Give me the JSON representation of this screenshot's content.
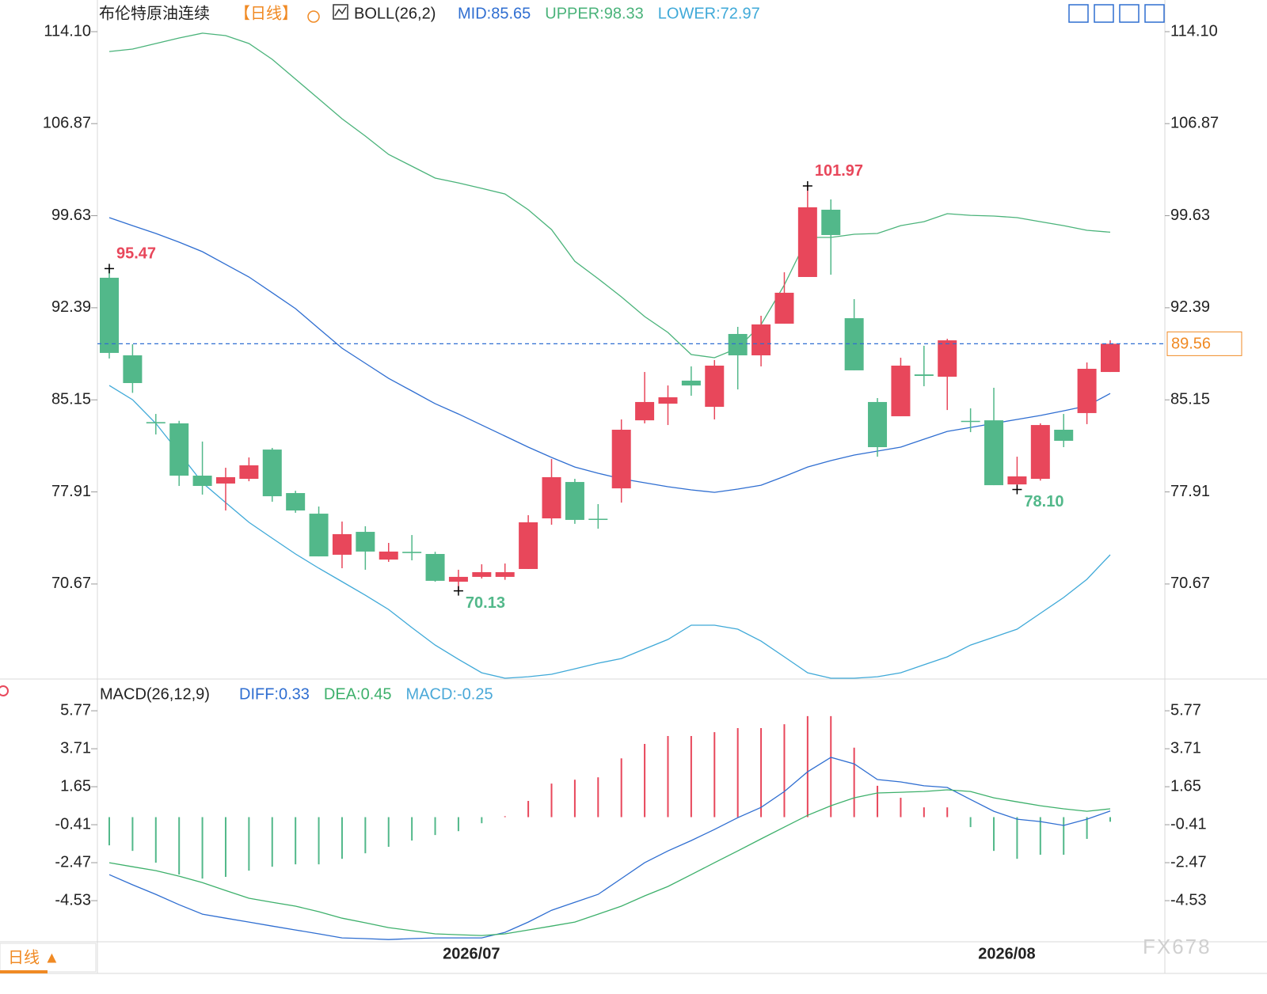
{
  "chart_data": [
    {
      "type": "candlestick",
      "title": "布伦特原油连续",
      "period": "【日线】",
      "indicator": "BOLL(26,2)",
      "up_color": "#e8475b",
      "down_color": "#52b88a",
      "open": [
        94.75,
        88.65,
        83.4,
        83.3,
        79.19,
        78.57,
        78.94,
        81.24,
        77.82,
        76.2,
        72.97,
        74.77,
        72.59,
        73.2,
        73.03,
        70.85,
        71.23,
        71.23,
        71.85,
        75.83,
        78.69,
        75.8,
        78.19,
        83.54,
        84.85,
        86.66,
        84.6,
        90.33,
        88.65,
        91.14,
        94.81,
        100.1,
        91.57,
        84.98,
        83.86,
        87.15,
        86.97,
        83.5,
        83.54,
        78.5,
        78.94,
        82.8,
        84.11,
        87.34
      ],
      "high": [
        95.47,
        89.52,
        84.04,
        83.5,
        81.87,
        79.81,
        80.62,
        81.37,
        78.0,
        76.76,
        75.58,
        75.21,
        73.9,
        74.52,
        73.2,
        71.79,
        72.22,
        72.28,
        76.08,
        80.5,
        78.94,
        76.95,
        83.61,
        87.34,
        86.28,
        87.78,
        88.28,
        90.89,
        91.76,
        95.18,
        101.97,
        100.91,
        93.07,
        85.29,
        88.46,
        89.4,
        89.95,
        84.48,
        86.1,
        80.68,
        83.3,
        84.04,
        88.09,
        89.83
      ],
      "low": [
        88.4,
        85.7,
        82.43,
        78.38,
        77.7,
        76.45,
        78.75,
        77.14,
        76.27,
        72.84,
        71.91,
        71.79,
        72.41,
        72.53,
        70.85,
        70.13,
        71.1,
        71.0,
        71.85,
        75.33,
        75.4,
        75.02,
        77.07,
        83.3,
        83.17,
        85.47,
        83.61,
        85.97,
        87.78,
        91.14,
        94.81,
        94.99,
        87.47,
        80.68,
        83.86,
        86.22,
        84.35,
        82.61,
        78.44,
        78.1,
        78.8,
        81.43,
        83.24,
        87.34
      ],
      "close": [
        88.84,
        86.47,
        83.3,
        79.19,
        78.38,
        79.07,
        80.0,
        77.57,
        76.45,
        72.84,
        74.59,
        73.22,
        73.22,
        73.1,
        70.92,
        71.23,
        71.6,
        71.6,
        75.52,
        79.07,
        75.71,
        75.75,
        82.8,
        84.98,
        85.35,
        86.28,
        87.84,
        88.65,
        91.08,
        93.57,
        100.29,
        98.11,
        87.47,
        81.43,
        87.84,
        87.03,
        89.83,
        83.45,
        78.44,
        79.13,
        83.17,
        81.93,
        87.59,
        89.56
      ],
      "series": [
        {
          "name": "MID:85.65",
          "color": "#2f6ed1",
          "values": [
            99.48,
            98.85,
            98.23,
            97.55,
            96.8,
            95.8,
            94.81,
            93.57,
            92.32,
            90.76,
            89.21,
            88.03,
            86.84,
            85.85,
            84.85,
            84.04,
            83.17,
            82.3,
            81.43,
            80.62,
            79.87,
            79.38,
            78.94,
            78.63,
            78.32,
            78.07,
            77.88,
            78.13,
            78.44,
            79.13,
            79.87,
            80.37,
            80.81,
            81.12,
            81.43,
            82.05,
            82.67,
            82.98,
            83.3,
            83.61,
            83.92,
            84.29,
            84.67,
            85.65
          ]
        },
        {
          "name": "UPPER:98.33",
          "color": "#4ab37a",
          "values": [
            112.54,
            112.73,
            113.17,
            113.6,
            113.98,
            113.79,
            113.17,
            111.92,
            110.37,
            108.81,
            107.25,
            105.89,
            104.45,
            103.52,
            102.59,
            102.21,
            101.78,
            101.34,
            100.1,
            98.54,
            96.05,
            94.68,
            93.25,
            91.7,
            90.45,
            88.71,
            88.46,
            89.21,
            91.07,
            94.19,
            97.92,
            97.92,
            98.17,
            98.23,
            98.85,
            99.16,
            99.79,
            99.66,
            99.6,
            99.48,
            99.16,
            98.85,
            98.48,
            98.33
          ]
        },
        {
          "name": "LOWER:72.97",
          "color": "#3fa9d8",
          "values": [
            86.28,
            85.16,
            83.3,
            80.99,
            78.63,
            77.07,
            75.52,
            74.27,
            73.03,
            71.91,
            70.85,
            69.79,
            68.67,
            67.24,
            65.87,
            64.75,
            63.69,
            63.26,
            63.38,
            63.57,
            64.0,
            64.44,
            64.81,
            65.56,
            66.31,
            67.43,
            67.43,
            67.12,
            66.18,
            64.94,
            63.69,
            63.26,
            63.26,
            63.38,
            63.69,
            64.32,
            64.94,
            65.87,
            66.49,
            67.12,
            68.36,
            69.61,
            71.04,
            72.97
          ]
        }
      ],
      "ylim": [
        63.26,
        116.59
      ],
      "yticks": [
        {
          "value": 114.1,
          "label": "114.10"
        },
        106.87,
        99.63,
        92.39,
        85.15,
        77.91,
        70.67
      ],
      "last_price": 89.56,
      "annotations": [
        {
          "label": "95.47",
          "value": 95.47
        },
        {
          "label": "70.13",
          "value": 70.13
        },
        {
          "label": "101.97",
          "value": 101.97
        },
        {
          "label": "78.10",
          "value": 78.1
        }
      ]
    },
    {
      "type": "macd",
      "title": "MACD(26,12,9)",
      "categories": [
        null,
        null,
        null,
        null,
        null,
        null,
        null,
        null,
        null,
        null,
        null,
        null,
        null,
        null,
        null,
        null,
        "2026/07",
        null,
        null,
        null,
        null,
        null,
        null,
        null,
        null,
        null,
        null,
        null,
        null,
        null,
        null,
        null,
        null,
        null,
        null,
        null,
        null,
        null,
        null,
        "2026/08",
        null,
        null,
        null,
        null
      ],
      "up_color": "#e8475b",
      "down_color": "#52b88a",
      "series": [
        {
          "name": "DIFF:0.33",
          "color": "#2f6ed1",
          "values": [
            -3.12,
            -3.67,
            -4.19,
            -4.75,
            -5.26,
            -5.48,
            -5.69,
            -5.91,
            -6.12,
            -6.33,
            -6.55,
            -6.59,
            -6.64,
            -6.59,
            -6.55,
            -6.55,
            -6.55,
            -6.25,
            -5.69,
            -5.05,
            -4.62,
            -4.19,
            -3.33,
            -2.47,
            -1.83,
            -1.27,
            -0.67,
            -0.03,
            0.53,
            1.39,
            2.46,
            3.24,
            2.89,
            2.04,
            1.91,
            1.7,
            1.61,
            0.96,
            0.32,
            -0.11,
            -0.24,
            -0.45,
            -0.11,
            0.33
          ]
        },
        {
          "name": "DEA:0.45",
          "color": "#3db06b",
          "values": [
            -2.47,
            -2.69,
            -2.9,
            -3.2,
            -3.55,
            -3.98,
            -4.4,
            -4.62,
            -4.83,
            -5.13,
            -5.48,
            -5.73,
            -5.99,
            -6.16,
            -6.33,
            -6.38,
            -6.42,
            -6.33,
            -6.12,
            -5.91,
            -5.69,
            -5.26,
            -4.83,
            -4.27,
            -3.76,
            -3.12,
            -2.47,
            -1.83,
            -1.18,
            -0.54,
            0.1,
            0.62,
            1.05,
            1.31,
            1.35,
            1.39,
            1.48,
            1.39,
            1.05,
            0.83,
            0.62,
            0.45,
            0.32,
            0.45
          ]
        },
        {
          "name": "MACD:-0.25",
          "color": "#4aa8d8",
          "values": [
            -1.53,
            -1.83,
            -2.47,
            -3.11,
            -3.33,
            -3.24,
            -2.9,
            -2.69,
            -2.56,
            -2.56,
            -2.26,
            -1.96,
            -1.61,
            -1.27,
            -0.97,
            -0.76,
            -0.33,
            0.05,
            0.88,
            1.82,
            2.03,
            2.16,
            3.19,
            3.97,
            4.4,
            4.4,
            4.61,
            4.83,
            4.83,
            5.04,
            5.48,
            5.48,
            3.77,
            1.7,
            1.05,
            0.53,
            0.53,
            -0.54,
            -1.83,
            -2.26,
            -2.04,
            -2.04,
            -1.18,
            -0.25
          ]
        }
      ],
      "ylim": [
        -6.76,
        7.32
      ],
      "yticks": [
        5.77,
        3.71,
        1.65,
        -0.41,
        -2.47,
        -4.53
      ]
    }
  ],
  "period_button": "日线 ▲",
  "watermark": "FX678"
}
